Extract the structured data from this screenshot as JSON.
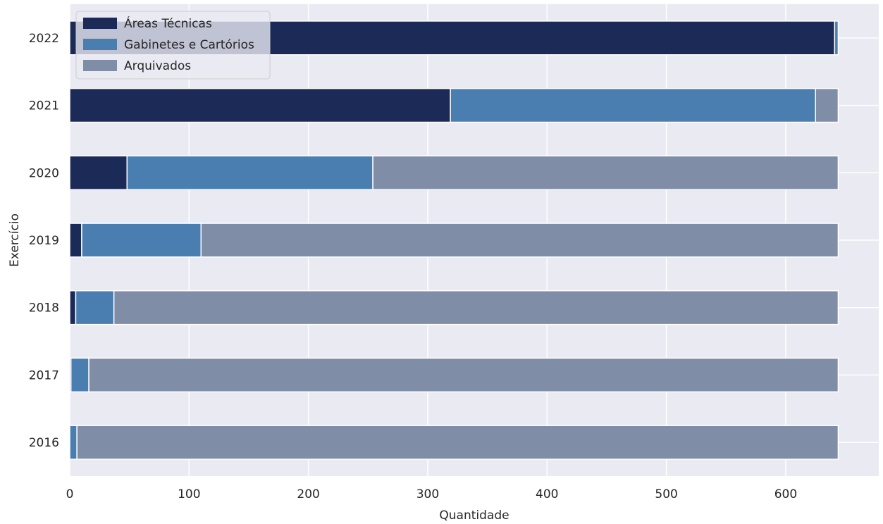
{
  "chart_data": {
    "type": "bar",
    "orientation": "horizontal",
    "stacked": true,
    "xlabel": "Quantidade",
    "ylabel": "Exercício",
    "xlim": [
      0,
      678
    ],
    "xticks": [
      "0",
      "100",
      "200",
      "300",
      "400",
      "500",
      "600"
    ],
    "categories": [
      "2016",
      "2017",
      "2018",
      "2019",
      "2020",
      "2021",
      "2022"
    ],
    "grid": true,
    "legend_position": "top-left",
    "series": [
      {
        "name": "Áreas Técnicas",
        "color": "#1b2a57",
        "values": [
          0,
          1,
          5,
          10,
          48,
          319,
          641
        ]
      },
      {
        "name": "Gabinetes e Cartórios",
        "color": "#4a7eb0",
        "values": [
          6,
          15,
          32,
          100,
          206,
          306,
          3
        ]
      },
      {
        "name": "Arquivados",
        "color": "#7f8ea6",
        "values": [
          638,
          628,
          607,
          534,
          390,
          19,
          0
        ]
      }
    ],
    "background_color": "#eaeaf2",
    "grid_color": "#ffffff"
  }
}
